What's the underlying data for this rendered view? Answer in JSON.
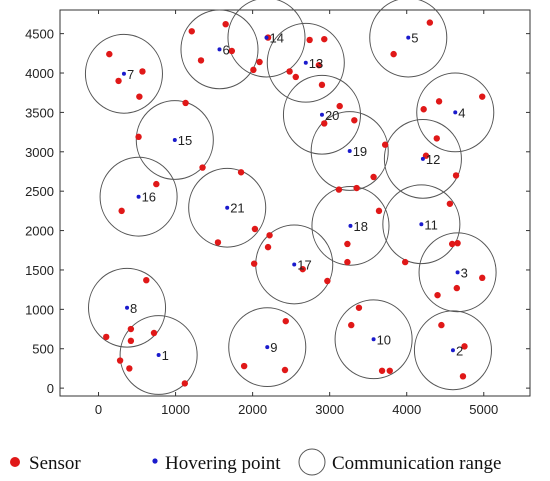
{
  "chart_data": {
    "type": "scatter",
    "xlim": [
      -500,
      5600
    ],
    "ylim": [
      -100,
      4800
    ],
    "x_ticks": [
      0,
      1000,
      2000,
      3000,
      4000,
      5000
    ],
    "y_ticks": [
      0,
      500,
      1000,
      1500,
      2000,
      2500,
      3000,
      3500,
      4000,
      4500
    ],
    "grid": false,
    "legend_placement": "bottom",
    "communication_radius": 500,
    "colors": {
      "sensor": "#e01818",
      "hovering_point": "#1a1acc",
      "range": "#555555"
    },
    "legend": [
      {
        "key": "sensor",
        "label": "Sensor"
      },
      {
        "key": "hovering_point",
        "label": "Hovering point"
      },
      {
        "key": "range",
        "label": "Communication range"
      }
    ],
    "series": [
      {
        "name": "Hovering point",
        "points": [
          {
            "label": "1",
            "x": 780,
            "y": 420
          },
          {
            "label": "2",
            "x": 4600,
            "y": 480
          },
          {
            "label": "3",
            "x": 4660,
            "y": 1470
          },
          {
            "label": "4",
            "x": 4630,
            "y": 3500
          },
          {
            "label": "5",
            "x": 4020,
            "y": 4450
          },
          {
            "label": "6",
            "x": 1570,
            "y": 4300
          },
          {
            "label": "7",
            "x": 330,
            "y": 3990
          },
          {
            "label": "8",
            "x": 370,
            "y": 1020
          },
          {
            "label": "9",
            "x": 2190,
            "y": 520
          },
          {
            "label": "10",
            "x": 3570,
            "y": 620
          },
          {
            "label": "11",
            "x": 4190,
            "y": 2080
          },
          {
            "label": "12",
            "x": 4210,
            "y": 2910
          },
          {
            "label": "13",
            "x": 2690,
            "y": 4130
          },
          {
            "label": "14",
            "x": 2180,
            "y": 4450
          },
          {
            "label": "15",
            "x": 990,
            "y": 3150
          },
          {
            "label": "16",
            "x": 520,
            "y": 2430
          },
          {
            "label": "17",
            "x": 2540,
            "y": 1570
          },
          {
            "label": "18",
            "x": 3270,
            "y": 2060
          },
          {
            "label": "19",
            "x": 3260,
            "y": 3010
          },
          {
            "label": "20",
            "x": 2900,
            "y": 3470
          },
          {
            "label": "21",
            "x": 1670,
            "y": 2290
          }
        ]
      },
      {
        "name": "Sensor",
        "points": [
          [
            1120,
            60
          ],
          [
            400,
            250
          ],
          [
            280,
            350
          ],
          [
            100,
            650
          ],
          [
            420,
            600
          ],
          [
            420,
            750
          ],
          [
            720,
            700
          ],
          [
            620,
            1370
          ],
          [
            4450,
            800
          ],
          [
            4400,
            1180
          ],
          [
            4650,
            1270
          ],
          [
            4980,
            1400
          ],
          [
            4750,
            530
          ],
          [
            4730,
            150
          ],
          [
            3280,
            800
          ],
          [
            3380,
            1020
          ],
          [
            3680,
            220
          ],
          [
            3780,
            220
          ],
          [
            1890,
            280
          ],
          [
            2420,
            230
          ],
          [
            2430,
            850
          ],
          [
            2020,
            1580
          ],
          [
            2200,
            1790
          ],
          [
            2220,
            1940
          ],
          [
            2650,
            1510
          ],
          [
            2970,
            1360
          ],
          [
            3230,
            1600
          ],
          [
            3230,
            1830
          ],
          [
            3640,
            2250
          ],
          [
            3980,
            1600
          ],
          [
            4590,
            1830
          ],
          [
            4660,
            1840
          ],
          [
            4560,
            2340
          ],
          [
            3120,
            2520
          ],
          [
            3350,
            2540
          ],
          [
            3570,
            2680
          ],
          [
            3720,
            3090
          ],
          [
            4250,
            2950
          ],
          [
            4640,
            2700
          ],
          [
            4390,
            3170
          ],
          [
            4220,
            3540
          ],
          [
            4420,
            3640
          ],
          [
            4980,
            3700
          ],
          [
            3320,
            3400
          ],
          [
            3130,
            3580
          ],
          [
            2900,
            3850
          ],
          [
            2090,
            4140
          ],
          [
            2480,
            4020
          ],
          [
            2560,
            3950
          ],
          [
            2860,
            4100
          ],
          [
            2200,
            4450
          ],
          [
            2740,
            4420
          ],
          [
            1210,
            4530
          ],
          [
            1330,
            4160
          ],
          [
            1650,
            4620
          ],
          [
            1730,
            4280
          ],
          [
            2010,
            4040
          ],
          [
            140,
            4240
          ],
          [
            260,
            3900
          ],
          [
            570,
            4020
          ],
          [
            530,
            3700
          ],
          [
            1130,
            3620
          ],
          [
            520,
            3190
          ],
          [
            1350,
            2800
          ],
          [
            750,
            2590
          ],
          [
            300,
            2250
          ],
          [
            1850,
            2740
          ],
          [
            1550,
            1850
          ],
          [
            2030,
            2020
          ],
          [
            4300,
            4640
          ],
          [
            3830,
            4240
          ],
          [
            2930,
            3360
          ],
          [
            2930,
            4430
          ]
        ]
      }
    ]
  }
}
